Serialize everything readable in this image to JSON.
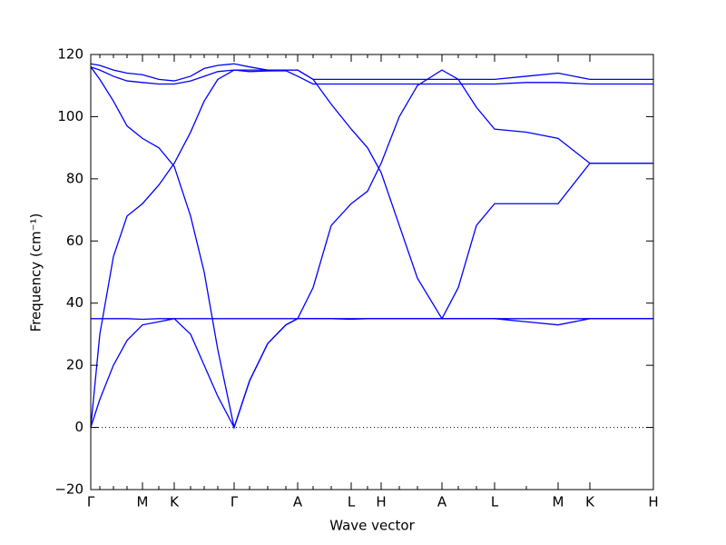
{
  "chart_data": {
    "type": "line",
    "xlabel": "Wave vector",
    "ylabel": "Frequency (cm⁻¹)",
    "x": [
      0,
      10,
      25,
      40,
      57,
      75,
      92,
      110,
      125,
      140,
      158,
      175,
      195,
      215,
      228,
      245,
      265,
      287,
      305,
      320,
      340,
      360,
      387,
      405,
      425,
      445,
      480,
      515,
      550,
      620
    ],
    "xlim": [
      0,
      620
    ],
    "xticks": [
      {
        "value": 0,
        "label": "Γ"
      },
      {
        "value": 57,
        "label": "M"
      },
      {
        "value": 92,
        "label": "K"
      },
      {
        "value": 158,
        "label": "Γ"
      },
      {
        "value": 228,
        "label": "A"
      },
      {
        "value": 287,
        "label": "L"
      },
      {
        "value": 320,
        "label": "H"
      },
      {
        "value": 387,
        "label": "A"
      },
      {
        "value": 445,
        "label": "L"
      },
      {
        "value": 515,
        "label": "M"
      },
      {
        "value": 550,
        "label": "K"
      },
      {
        "value": 620,
        "label": "H"
      }
    ],
    "ylim": [
      -20,
      120
    ],
    "yticks": [
      {
        "value": -20,
        "label": "−20"
      },
      0,
      20,
      40,
      60,
      80,
      100,
      120
    ],
    "hlines": [
      0
    ],
    "series": [
      {
        "color": "#0000ff",
        "values": [
          0,
          9,
          20,
          28,
          33,
          34,
          35,
          30,
          20,
          10,
          0,
          15,
          27,
          33,
          35,
          35,
          35,
          35,
          35,
          35,
          35,
          35,
          35,
          35,
          35,
          35,
          34,
          33,
          35,
          35
        ]
      },
      {
        "color": "#0000ff",
        "values": [
          35,
          35,
          35,
          35,
          34.8,
          35,
          35,
          35,
          35,
          35,
          35,
          35,
          35,
          35,
          35,
          35,
          35,
          34.8,
          35,
          35,
          35,
          35,
          35,
          35,
          35,
          35,
          35,
          35,
          35,
          35
        ]
      },
      {
        "color": "#0000ff",
        "values": [
          0,
          30,
          55,
          68,
          72,
          78,
          85,
          95,
          105,
          112,
          115,
          115,
          115,
          115,
          115,
          112,
          104,
          96,
          90,
          82,
          65,
          48,
          35,
          45,
          65,
          72,
          72,
          72,
          85,
          85
        ]
      },
      {
        "color": "#0000ff",
        "values": [
          116,
          112,
          105,
          97,
          93,
          90,
          84,
          68,
          50,
          25,
          0,
          15,
          27,
          33,
          35,
          45,
          65,
          72,
          76,
          85,
          100,
          110,
          115,
          112,
          103,
          96,
          95,
          93,
          85,
          85
        ]
      },
      {
        "color": "#0000ff",
        "values": [
          117,
          116.5,
          115,
          114,
          113.5,
          112,
          111.5,
          113,
          115.5,
          116.5,
          117,
          116,
          115,
          115,
          115,
          112,
          112,
          112,
          112,
          112,
          112,
          112,
          112,
          112,
          112,
          112,
          113,
          114,
          112,
          112
        ]
      },
      {
        "color": "#0000ff",
        "values": [
          116,
          115,
          113,
          111.5,
          111,
          110.5,
          110.5,
          111.5,
          113,
          114.5,
          115,
          114.5,
          114.7,
          114.8,
          113,
          110.5,
          110.5,
          110.5,
          110.5,
          110.5,
          110.5,
          110.5,
          110.5,
          110.5,
          110.5,
          110.5,
          111,
          111,
          110.5,
          110.5
        ]
      }
    ]
  }
}
